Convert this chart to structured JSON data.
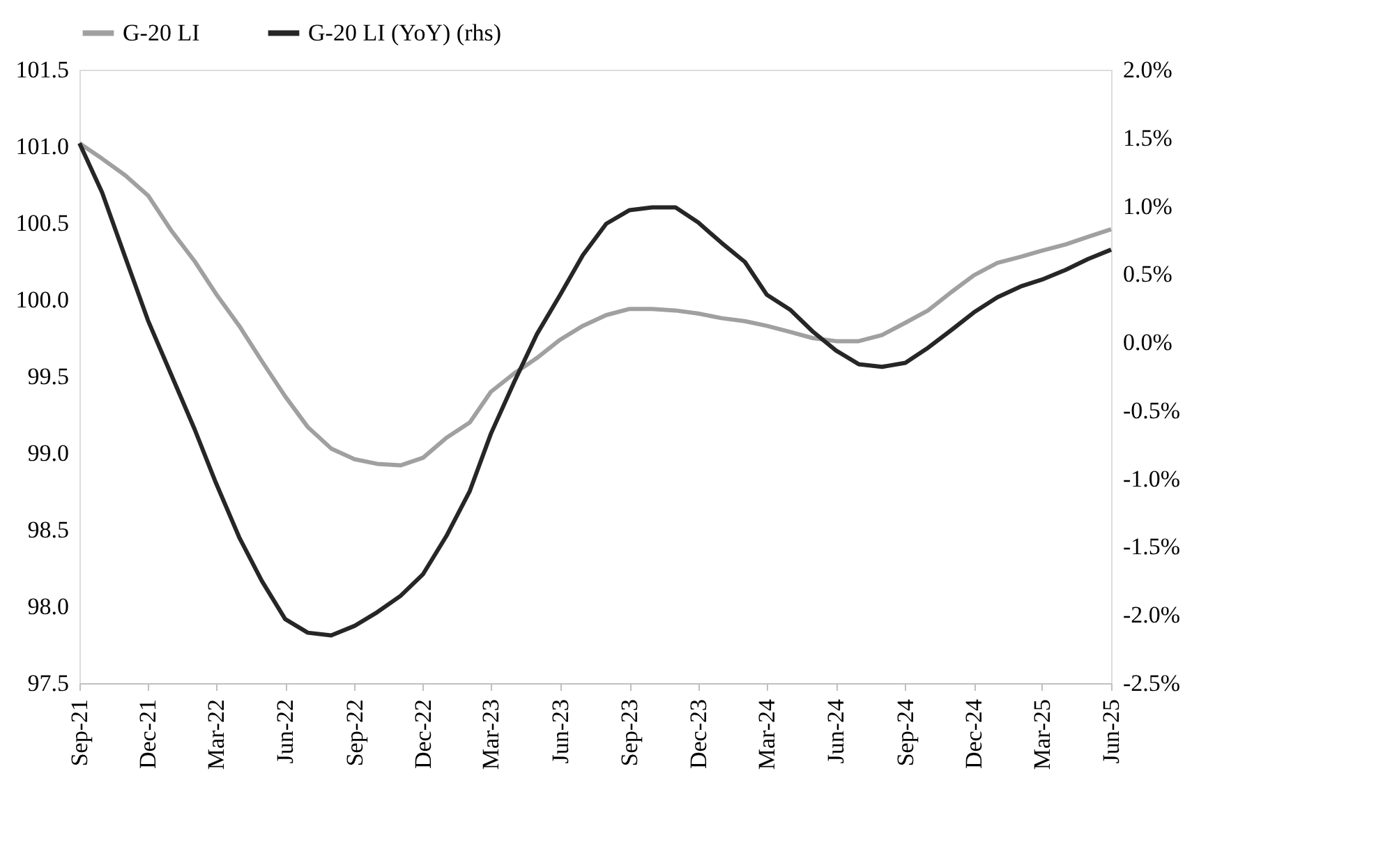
{
  "chart_data": {
    "type": "line",
    "x": [
      "2021-09",
      "2021-10",
      "2021-11",
      "2021-12",
      "2022-01",
      "2022-02",
      "2022-03",
      "2022-04",
      "2022-05",
      "2022-06",
      "2022-07",
      "2022-08",
      "2022-09",
      "2022-10",
      "2022-11",
      "2022-12",
      "2023-01",
      "2023-02",
      "2023-03",
      "2023-04",
      "2023-05",
      "2023-06",
      "2023-07",
      "2023-08",
      "2023-09",
      "2023-10",
      "2023-11",
      "2023-12",
      "2024-01",
      "2024-02",
      "2024-03",
      "2024-04",
      "2024-05",
      "2024-06",
      "2024-07",
      "2024-08",
      "2024-09",
      "2024-10",
      "2024-11",
      "2024-12",
      "2025-01",
      "2025-02",
      "2025-03",
      "2025-04",
      "2025-05",
      "2025-06"
    ],
    "series": [
      {
        "name": "G-20 LI",
        "color": "#a0a0a0",
        "values": [
          101.02,
          100.92,
          100.81,
          100.68,
          100.45,
          100.25,
          100.04,
          99.83,
          99.6,
          99.37,
          99.17,
          99.03,
          98.96,
          98.93,
          98.92,
          98.97,
          99.1,
          99.2,
          99.4,
          99.52,
          99.62,
          99.74,
          99.83,
          99.9,
          99.94,
          99.94,
          99.93,
          99.91,
          99.88,
          99.86,
          99.83,
          99.79,
          99.75,
          99.73,
          99.73,
          99.77,
          99.85,
          99.93,
          100.05,
          100.16,
          100.24,
          100.28,
          100.32,
          100.36,
          100.41,
          100.46
        ]
      },
      {
        "name": "G-20 LI (YoY) (rhs)",
        "color": "#262626",
        "axis": "y2",
        "values": [
          1.46,
          1.1,
          0.62,
          0.16,
          -0.24,
          -0.64,
          -1.03,
          -1.43,
          -1.75,
          -2.03,
          -2.13,
          -2.15,
          -2.08,
          -1.98,
          -1.86,
          -1.7,
          -1.42,
          -1.09,
          -0.67,
          -0.29,
          0.06,
          0.35,
          0.64,
          0.87,
          0.97,
          0.99,
          0.99,
          0.88,
          0.73,
          0.59,
          0.35,
          0.24,
          0.08,
          -0.06,
          -0.16,
          -0.18,
          -0.15,
          -0.04,
          0.09,
          0.22,
          0.33,
          0.41,
          0.46,
          0.53,
          0.61,
          0.68
        ]
      }
    ],
    "xlim": [
      "2021-09",
      "2025-06"
    ],
    "xticks": [
      {
        "value": "2021-09",
        "label": "Sep-21"
      },
      {
        "value": "2021-12",
        "label": "Dec-21"
      },
      {
        "value": "2022-03",
        "label": "Mar-22"
      },
      {
        "value": "2022-06",
        "label": "Jun-22"
      },
      {
        "value": "2022-09",
        "label": "Sep-22"
      },
      {
        "value": "2022-12",
        "label": "Dec-22"
      },
      {
        "value": "2023-03",
        "label": "Mar-23"
      },
      {
        "value": "2023-06",
        "label": "Jun-23"
      },
      {
        "value": "2023-09",
        "label": "Sep-23"
      },
      {
        "value": "2023-12",
        "label": "Dec-23"
      },
      {
        "value": "2024-03",
        "label": "Mar-24"
      },
      {
        "value": "2024-06",
        "label": "Jun-24"
      },
      {
        "value": "2024-09",
        "label": "Sep-24"
      },
      {
        "value": "2024-12",
        "label": "Dec-24"
      },
      {
        "value": "2025-03",
        "label": "Mar-25"
      },
      {
        "value": "2025-06",
        "label": "Jun-25"
      }
    ],
    "ylim": [
      97.5,
      101.5
    ],
    "yticks": [
      {
        "value": 97.5,
        "label": "97.5"
      },
      {
        "value": 98,
        "label": "98.0"
      },
      {
        "value": 98.5,
        "label": "98.5"
      },
      {
        "value": 99,
        "label": "99.0"
      },
      {
        "value": 99.5,
        "label": "99.5"
      },
      {
        "value": 100,
        "label": "100.0"
      },
      {
        "value": 100.5,
        "label": "100.5"
      },
      {
        "value": 101,
        "label": "101.0"
      },
      {
        "value": 101.5,
        "label": "101.5"
      }
    ],
    "y2lim": [
      -2.5,
      2.0
    ],
    "y2ticks": [
      {
        "value": -2.5,
        "label": "-2.5%"
      },
      {
        "value": -2.0,
        "label": "-2.0%"
      },
      {
        "value": -1.5,
        "label": "-1.5%"
      },
      {
        "value": -1.0,
        "label": "-1.0%"
      },
      {
        "value": -0.5,
        "label": "-0.5%"
      },
      {
        "value": 0,
        "label": "0.0%"
      },
      {
        "value": 0.5,
        "label": "0.5%"
      },
      {
        "value": 1.0,
        "label": "1.0%"
      },
      {
        "value": 1.5,
        "label": "1.5%"
      },
      {
        "value": 2.0,
        "label": "2.0%"
      }
    ],
    "legend": "top",
    "grid": false,
    "marker": "none",
    "line_style": "solid"
  }
}
